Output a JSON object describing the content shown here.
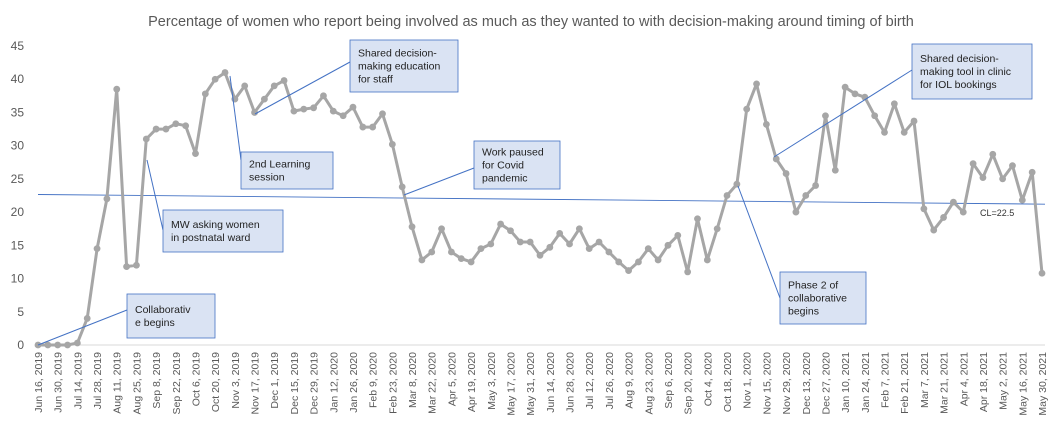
{
  "chart_data": {
    "type": "line",
    "title": "Percentage of women who report being involved as much as they wanted to with decision-making around timing of birth",
    "xlabel": "",
    "ylabel": "",
    "ylim": [
      0,
      45
    ],
    "yticks": [
      0,
      5,
      10,
      15,
      20,
      25,
      30,
      35,
      40,
      45
    ],
    "grid": false,
    "legend": "none",
    "colors": {
      "series": "#a6a6a6",
      "centerline": "#4472c4",
      "annotation_fill": "#dae3f3",
      "annotation_border": "#4472c4",
      "text": "#595959"
    },
    "x_start": "2019-06-16",
    "x_end": "2021-05-30",
    "x_tick_labels": [
      "Jun 16, 2019",
      "Jun 30, 2019",
      "Jul 14, 2019",
      "Jul 28, 2019",
      "Aug 11, 2019",
      "Aug 25, 2019",
      "Sep 8, 2019",
      "Sep 22, 2019",
      "Oct 6, 2019",
      "Oct 20, 2019",
      "Nov 3, 2019",
      "Nov 17, 2019",
      "Dec 1, 2019",
      "Dec 15, 2019",
      "Dec 29, 2019",
      "Jan 12, 2020",
      "Jan 26, 2020",
      "Feb 9, 2020",
      "Feb 23, 2020",
      "Mar 8, 2020",
      "Mar 22, 2020",
      "Apr 5, 2020",
      "Apr 19, 2020",
      "May 3, 2020",
      "May 17, 2020",
      "May 31, 2020",
      "Jun 14, 2020",
      "Jun 28, 2020",
      "Jul 12, 2020",
      "Jul 26, 2020",
      "Aug 9, 2020",
      "Aug 23, 2020",
      "Sep 6, 2020",
      "Sep 20, 2020",
      "Oct 4, 2020",
      "Oct 18, 2020",
      "Nov 1, 2020",
      "Nov 15, 2020",
      "Nov 29, 2020",
      "Dec 13, 2020",
      "Dec 27, 2020",
      "Jan 10, 2021",
      "Jan 24, 2021",
      "Feb 7, 2021",
      "Feb 21, 2021",
      "Mar 7, 2021",
      "Mar 21, 2021",
      "Apr 4, 2021",
      "Apr 18, 2021",
      "May 2, 2021",
      "May 16, 2021",
      "May 30, 2021"
    ],
    "series": [
      {
        "values": [
          0,
          0,
          0,
          0,
          0.3,
          4,
          14.5,
          22,
          38.5,
          11.8,
          12,
          31,
          32.5,
          32.5,
          33.3,
          33,
          28.8,
          37.8,
          40,
          41,
          37,
          39,
          35,
          37,
          39,
          39.8,
          35.2,
          35.5,
          35.7,
          37.5,
          35.2,
          34.5,
          35.8,
          32.8,
          32.8,
          34.8,
          30.2,
          23.8,
          17.8,
          12.8,
          14,
          17.5,
          14,
          13,
          12.5,
          14.5,
          15.2,
          18.2,
          17.2,
          15.5,
          15.5,
          13.5,
          14.7,
          16.8,
          15.2,
          17.5,
          14.5,
          15.5,
          14,
          12.5,
          11.2,
          12.5,
          14.5,
          12.8,
          15,
          16.5,
          11,
          19,
          12.8,
          17.5,
          22.5,
          24.2,
          35.5,
          39.3,
          33.2,
          28,
          25.8,
          20,
          22.5,
          24,
          34.5,
          26.3,
          38.8,
          37.8,
          37.3,
          34.5,
          32,
          36.3,
          32,
          33.7,
          20.5,
          17.3,
          19.2,
          21.5,
          20,
          27.3,
          25.2,
          28.7,
          25,
          27,
          21.8,
          26,
          10.8
        ]
      }
    ],
    "centerline": {
      "value": 22.5,
      "value_end": 21.5,
      "label": "CL=22.5"
    },
    "annotations": [
      {
        "id": "collab",
        "lines": [
          "Collaborativ",
          "e begins"
        ]
      },
      {
        "id": "mw",
        "lines": [
          "MW asking women",
          "in postnatal ward"
        ]
      },
      {
        "id": "shared-edu",
        "lines": [
          "Shared decision-",
          "making education",
          "for staff"
        ]
      },
      {
        "id": "learning2",
        "lines": [
          "2nd Learning",
          "session"
        ]
      },
      {
        "id": "covid",
        "lines": [
          "Work paused",
          "for Covid",
          "pandemic"
        ]
      },
      {
        "id": "phase2",
        "lines": [
          "Phase 2 of",
          "collaborative",
          "begins"
        ]
      },
      {
        "id": "tool",
        "lines": [
          "Shared decision-",
          "making tool in clinic",
          "for IOL bookings"
        ]
      }
    ]
  }
}
